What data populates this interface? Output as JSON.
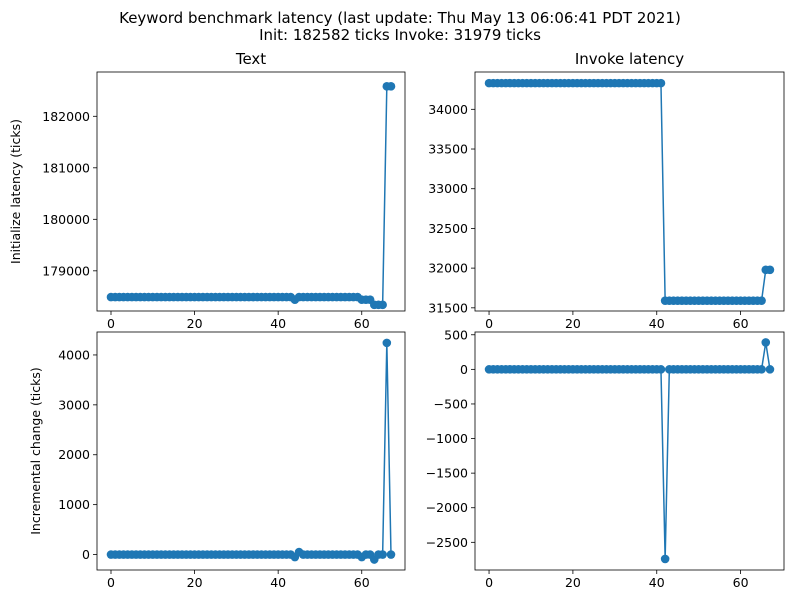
{
  "figure": {
    "suptitle_line1": "Keyword benchmark latency (last update: Thu May 13 06:06:41 PDT 2021)",
    "suptitle_line2": "Init: 182582 ticks Invoke: 31979 ticks",
    "series_color": "#1f77b4"
  },
  "chart_data": [
    {
      "type": "line",
      "title": "Text",
      "xlabel": "",
      "ylabel": "Initialize latency (ticks)",
      "xlim": [
        -3.35,
        70.35
      ],
      "ylim": [
        178220,
        182860
      ],
      "xticks": [
        0,
        20,
        40,
        60
      ],
      "yticks": [
        179000,
        180000,
        181000,
        182000
      ],
      "marker": "circle",
      "grid": false,
      "series": [
        {
          "x": [
            0,
            1,
            2,
            3,
            4,
            5,
            6,
            7,
            8,
            9,
            10,
            11,
            12,
            13,
            14,
            15,
            16,
            17,
            18,
            19,
            20,
            21,
            22,
            23,
            24,
            25,
            26,
            27,
            28,
            29,
            30,
            31,
            32,
            33,
            34,
            35,
            36,
            37,
            38,
            39,
            40,
            41,
            42,
            43,
            44,
            45,
            46,
            47,
            48,
            49,
            50,
            51,
            52,
            53,
            54,
            55,
            56,
            57,
            58,
            59,
            60,
            61,
            62,
            63,
            64,
            65,
            66,
            67
          ],
          "y": [
            178490,
            178490,
            178490,
            178490,
            178490,
            178490,
            178490,
            178490,
            178490,
            178490,
            178490,
            178490,
            178490,
            178490,
            178490,
            178490,
            178490,
            178490,
            178490,
            178490,
            178490,
            178490,
            178490,
            178490,
            178490,
            178490,
            178490,
            178490,
            178490,
            178490,
            178490,
            178490,
            178490,
            178490,
            178490,
            178490,
            178490,
            178490,
            178490,
            178490,
            178490,
            178490,
            178490,
            178490,
            178440,
            178490,
            178490,
            178490,
            178490,
            178490,
            178490,
            178490,
            178490,
            178490,
            178490,
            178490,
            178490,
            178490,
            178490,
            178490,
            178440,
            178440,
            178440,
            178340,
            178340,
            178340,
            182582,
            182582
          ]
        }
      ]
    },
    {
      "type": "line",
      "title": "Invoke latency",
      "xlabel": "",
      "ylabel": "",
      "xlim": [
        -3.35,
        70.35
      ],
      "ylim": [
        31460,
        34470
      ],
      "xticks": [
        0,
        20,
        40,
        60
      ],
      "yticks": [
        31500,
        32000,
        32500,
        33000,
        33500,
        34000
      ],
      "marker": "circle",
      "grid": false,
      "series": [
        {
          "x": [
            0,
            1,
            2,
            3,
            4,
            5,
            6,
            7,
            8,
            9,
            10,
            11,
            12,
            13,
            14,
            15,
            16,
            17,
            18,
            19,
            20,
            21,
            22,
            23,
            24,
            25,
            26,
            27,
            28,
            29,
            30,
            31,
            32,
            33,
            34,
            35,
            36,
            37,
            38,
            39,
            40,
            41,
            42,
            43,
            44,
            45,
            46,
            47,
            48,
            49,
            50,
            51,
            52,
            53,
            54,
            55,
            56,
            57,
            58,
            59,
            60,
            61,
            62,
            63,
            64,
            65,
            66,
            67
          ],
          "y": [
            34330,
            34330,
            34330,
            34330,
            34330,
            34330,
            34330,
            34330,
            34330,
            34330,
            34330,
            34330,
            34330,
            34330,
            34330,
            34330,
            34330,
            34330,
            34330,
            34330,
            34330,
            34330,
            34330,
            34330,
            34330,
            34330,
            34330,
            34330,
            34330,
            34330,
            34330,
            34330,
            34330,
            34330,
            34330,
            34330,
            34330,
            34330,
            34330,
            34330,
            34330,
            34330,
            31590,
            31590,
            31590,
            31590,
            31590,
            31590,
            31590,
            31590,
            31590,
            31590,
            31590,
            31590,
            31590,
            31590,
            31590,
            31590,
            31590,
            31590,
            31590,
            31590,
            31590,
            31590,
            31590,
            31590,
            31979,
            31979
          ]
        }
      ]
    },
    {
      "type": "line",
      "title": "",
      "xlabel": "",
      "ylabel": "Incremental change (ticks)",
      "xlim": [
        -3.35,
        70.35
      ],
      "ylim": [
        -310,
        4460
      ],
      "xticks": [
        0,
        20,
        40,
        60
      ],
      "yticks": [
        0,
        1000,
        2000,
        3000,
        4000
      ],
      "marker": "circle",
      "grid": false,
      "series": [
        {
          "x": [
            0,
            1,
            2,
            3,
            4,
            5,
            6,
            7,
            8,
            9,
            10,
            11,
            12,
            13,
            14,
            15,
            16,
            17,
            18,
            19,
            20,
            21,
            22,
            23,
            24,
            25,
            26,
            27,
            28,
            29,
            30,
            31,
            32,
            33,
            34,
            35,
            36,
            37,
            38,
            39,
            40,
            41,
            42,
            43,
            44,
            45,
            46,
            47,
            48,
            49,
            50,
            51,
            52,
            53,
            54,
            55,
            56,
            57,
            58,
            59,
            60,
            61,
            62,
            63,
            64,
            65,
            66,
            67
          ],
          "y": [
            0,
            0,
            0,
            0,
            0,
            0,
            0,
            0,
            0,
            0,
            0,
            0,
            0,
            0,
            0,
            0,
            0,
            0,
            0,
            0,
            0,
            0,
            0,
            0,
            0,
            0,
            0,
            0,
            0,
            0,
            0,
            0,
            0,
            0,
            0,
            0,
            0,
            0,
            0,
            0,
            0,
            0,
            0,
            0,
            -50,
            50,
            0,
            0,
            0,
            0,
            0,
            0,
            0,
            0,
            0,
            0,
            0,
            0,
            0,
            0,
            -50,
            0,
            0,
            -100,
            0,
            0,
            4242,
            0
          ]
        }
      ]
    },
    {
      "type": "line",
      "title": "",
      "xlabel": "",
      "ylabel": "",
      "xlim": [
        -3.35,
        70.35
      ],
      "ylim": [
        -2900,
        540
      ],
      "xticks": [
        0,
        20,
        40,
        60
      ],
      "yticks": [
        -2500,
        -2000,
        -1500,
        -1000,
        -500,
        0,
        500
      ],
      "marker": "circle",
      "grid": false,
      "series": [
        {
          "x": [
            0,
            1,
            2,
            3,
            4,
            5,
            6,
            7,
            8,
            9,
            10,
            11,
            12,
            13,
            14,
            15,
            16,
            17,
            18,
            19,
            20,
            21,
            22,
            23,
            24,
            25,
            26,
            27,
            28,
            29,
            30,
            31,
            32,
            33,
            34,
            35,
            36,
            37,
            38,
            39,
            40,
            41,
            42,
            43,
            44,
            45,
            46,
            47,
            48,
            49,
            50,
            51,
            52,
            53,
            54,
            55,
            56,
            57,
            58,
            59,
            60,
            61,
            62,
            63,
            64,
            65,
            66,
            67
          ],
          "y": [
            0,
            0,
            0,
            0,
            0,
            0,
            0,
            0,
            0,
            0,
            0,
            0,
            0,
            0,
            0,
            0,
            0,
            0,
            0,
            0,
            0,
            0,
            0,
            0,
            0,
            0,
            0,
            0,
            0,
            0,
            0,
            0,
            0,
            0,
            0,
            0,
            0,
            0,
            0,
            0,
            0,
            0,
            -2740,
            0,
            0,
            0,
            0,
            0,
            0,
            0,
            0,
            0,
            0,
            0,
            0,
            0,
            0,
            0,
            0,
            0,
            0,
            0,
            0,
            0,
            0,
            0,
            389,
            0
          ]
        }
      ]
    }
  ]
}
